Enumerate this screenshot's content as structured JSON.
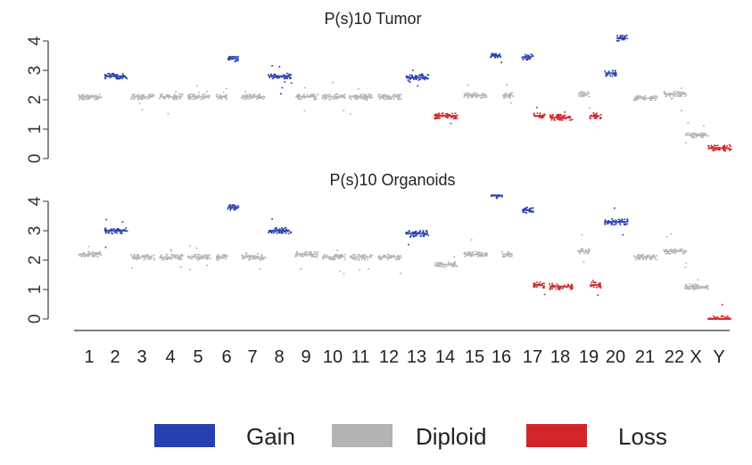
{
  "chart_data": {
    "type": "scatter",
    "colors": {
      "gain": "#2640b0",
      "diploid": "#b3b3b3",
      "loss": "#d0262a"
    },
    "x_ticks": [
      "1",
      "2",
      "3",
      "4",
      "5",
      "6",
      "7",
      "8",
      "9",
      "10",
      "11",
      "12",
      "13",
      "14",
      "15",
      "16",
      "17",
      "18",
      "19",
      "20",
      "21",
      "22",
      "X",
      "Y"
    ],
    "legend": [
      {
        "key": "gain",
        "label": "Gain"
      },
      {
        "key": "diploid",
        "label": "Diploid"
      },
      {
        "key": "loss",
        "label": "Loss"
      }
    ],
    "panels": [
      {
        "title": "P(s)10 Tumor",
        "ylim": [
          0,
          4
        ],
        "yticks": [
          "0",
          "1",
          "2",
          "3",
          "4"
        ],
        "segments": [
          {
            "chr": "1",
            "cn": 2.1,
            "state": "diploid"
          },
          {
            "chr": "2",
            "cn": 2.8,
            "state": "gain"
          },
          {
            "chr": "3",
            "cn": 2.1,
            "state": "diploid"
          },
          {
            "chr": "4",
            "cn": 2.1,
            "state": "diploid"
          },
          {
            "chr": "5",
            "cn": 2.1,
            "state": "diploid"
          },
          {
            "chr": "6",
            "cn": 2.1,
            "state": "diploid"
          },
          {
            "chr": "6",
            "cn": 3.4,
            "state": "gain"
          },
          {
            "chr": "7",
            "cn": 2.1,
            "state": "diploid"
          },
          {
            "chr": "8",
            "cn": 2.8,
            "state": "gain"
          },
          {
            "chr": "9",
            "cn": 2.1,
            "state": "diploid"
          },
          {
            "chr": "10",
            "cn": 2.1,
            "state": "diploid"
          },
          {
            "chr": "11",
            "cn": 2.1,
            "state": "diploid"
          },
          {
            "chr": "12",
            "cn": 2.1,
            "state": "diploid"
          },
          {
            "chr": "13",
            "cn": 2.75,
            "state": "gain"
          },
          {
            "chr": "14",
            "cn": 1.45,
            "state": "loss"
          },
          {
            "chr": "15",
            "cn": 2.15,
            "state": "diploid"
          },
          {
            "chr": "16",
            "cn": 3.5,
            "state": "gain"
          },
          {
            "chr": "16",
            "cn": 2.15,
            "state": "diploid"
          },
          {
            "chr": "17",
            "cn": 3.45,
            "state": "gain"
          },
          {
            "chr": "17",
            "cn": 1.45,
            "state": "loss"
          },
          {
            "chr": "18",
            "cn": 1.4,
            "state": "loss"
          },
          {
            "chr": "19",
            "cn": 2.2,
            "state": "diploid"
          },
          {
            "chr": "19",
            "cn": 1.45,
            "state": "loss"
          },
          {
            "chr": "20",
            "cn": 2.9,
            "state": "gain"
          },
          {
            "chr": "20",
            "cn": 4.1,
            "state": "gain"
          },
          {
            "chr": "21",
            "cn": 2.05,
            "state": "diploid"
          },
          {
            "chr": "22",
            "cn": 2.2,
            "state": "diploid"
          },
          {
            "chr": "X",
            "cn": 0.8,
            "state": "diploid"
          },
          {
            "chr": "Y",
            "cn": 0.35,
            "state": "loss"
          }
        ]
      },
      {
        "title": "P(s)10 Organoids",
        "ylim": [
          0,
          4
        ],
        "yticks": [
          "0",
          "1",
          "2",
          "3",
          "4"
        ],
        "segments": [
          {
            "chr": "1",
            "cn": 2.2,
            "state": "diploid"
          },
          {
            "chr": "2",
            "cn": 3.0,
            "state": "gain"
          },
          {
            "chr": "3",
            "cn": 2.1,
            "state": "diploid"
          },
          {
            "chr": "4",
            "cn": 2.1,
            "state": "diploid"
          },
          {
            "chr": "5",
            "cn": 2.1,
            "state": "diploid"
          },
          {
            "chr": "6",
            "cn": 2.1,
            "state": "diploid"
          },
          {
            "chr": "6",
            "cn": 3.8,
            "state": "gain"
          },
          {
            "chr": "7",
            "cn": 2.1,
            "state": "diploid"
          },
          {
            "chr": "8",
            "cn": 3.0,
            "state": "gain"
          },
          {
            "chr": "9",
            "cn": 2.2,
            "state": "diploid"
          },
          {
            "chr": "10",
            "cn": 2.1,
            "state": "diploid"
          },
          {
            "chr": "11",
            "cn": 2.1,
            "state": "diploid"
          },
          {
            "chr": "12",
            "cn": 2.1,
            "state": "diploid"
          },
          {
            "chr": "13",
            "cn": 2.9,
            "state": "gain"
          },
          {
            "chr": "14",
            "cn": 1.85,
            "state": "diploid"
          },
          {
            "chr": "15",
            "cn": 2.2,
            "state": "diploid"
          },
          {
            "chr": "16",
            "cn": 4.2,
            "state": "gain"
          },
          {
            "chr": "16",
            "cn": 2.2,
            "state": "diploid"
          },
          {
            "chr": "17",
            "cn": 3.7,
            "state": "gain"
          },
          {
            "chr": "17",
            "cn": 1.15,
            "state": "loss"
          },
          {
            "chr": "18",
            "cn": 1.1,
            "state": "loss"
          },
          {
            "chr": "19",
            "cn": 2.3,
            "state": "diploid"
          },
          {
            "chr": "19",
            "cn": 1.15,
            "state": "loss"
          },
          {
            "chr": "20",
            "cn": 3.3,
            "state": "gain"
          },
          {
            "chr": "21",
            "cn": 2.1,
            "state": "diploid"
          },
          {
            "chr": "22",
            "cn": 2.3,
            "state": "diploid"
          },
          {
            "chr": "X",
            "cn": 1.1,
            "state": "diploid"
          },
          {
            "chr": "Y",
            "cn": 0.0,
            "state": "loss"
          }
        ]
      }
    ]
  }
}
